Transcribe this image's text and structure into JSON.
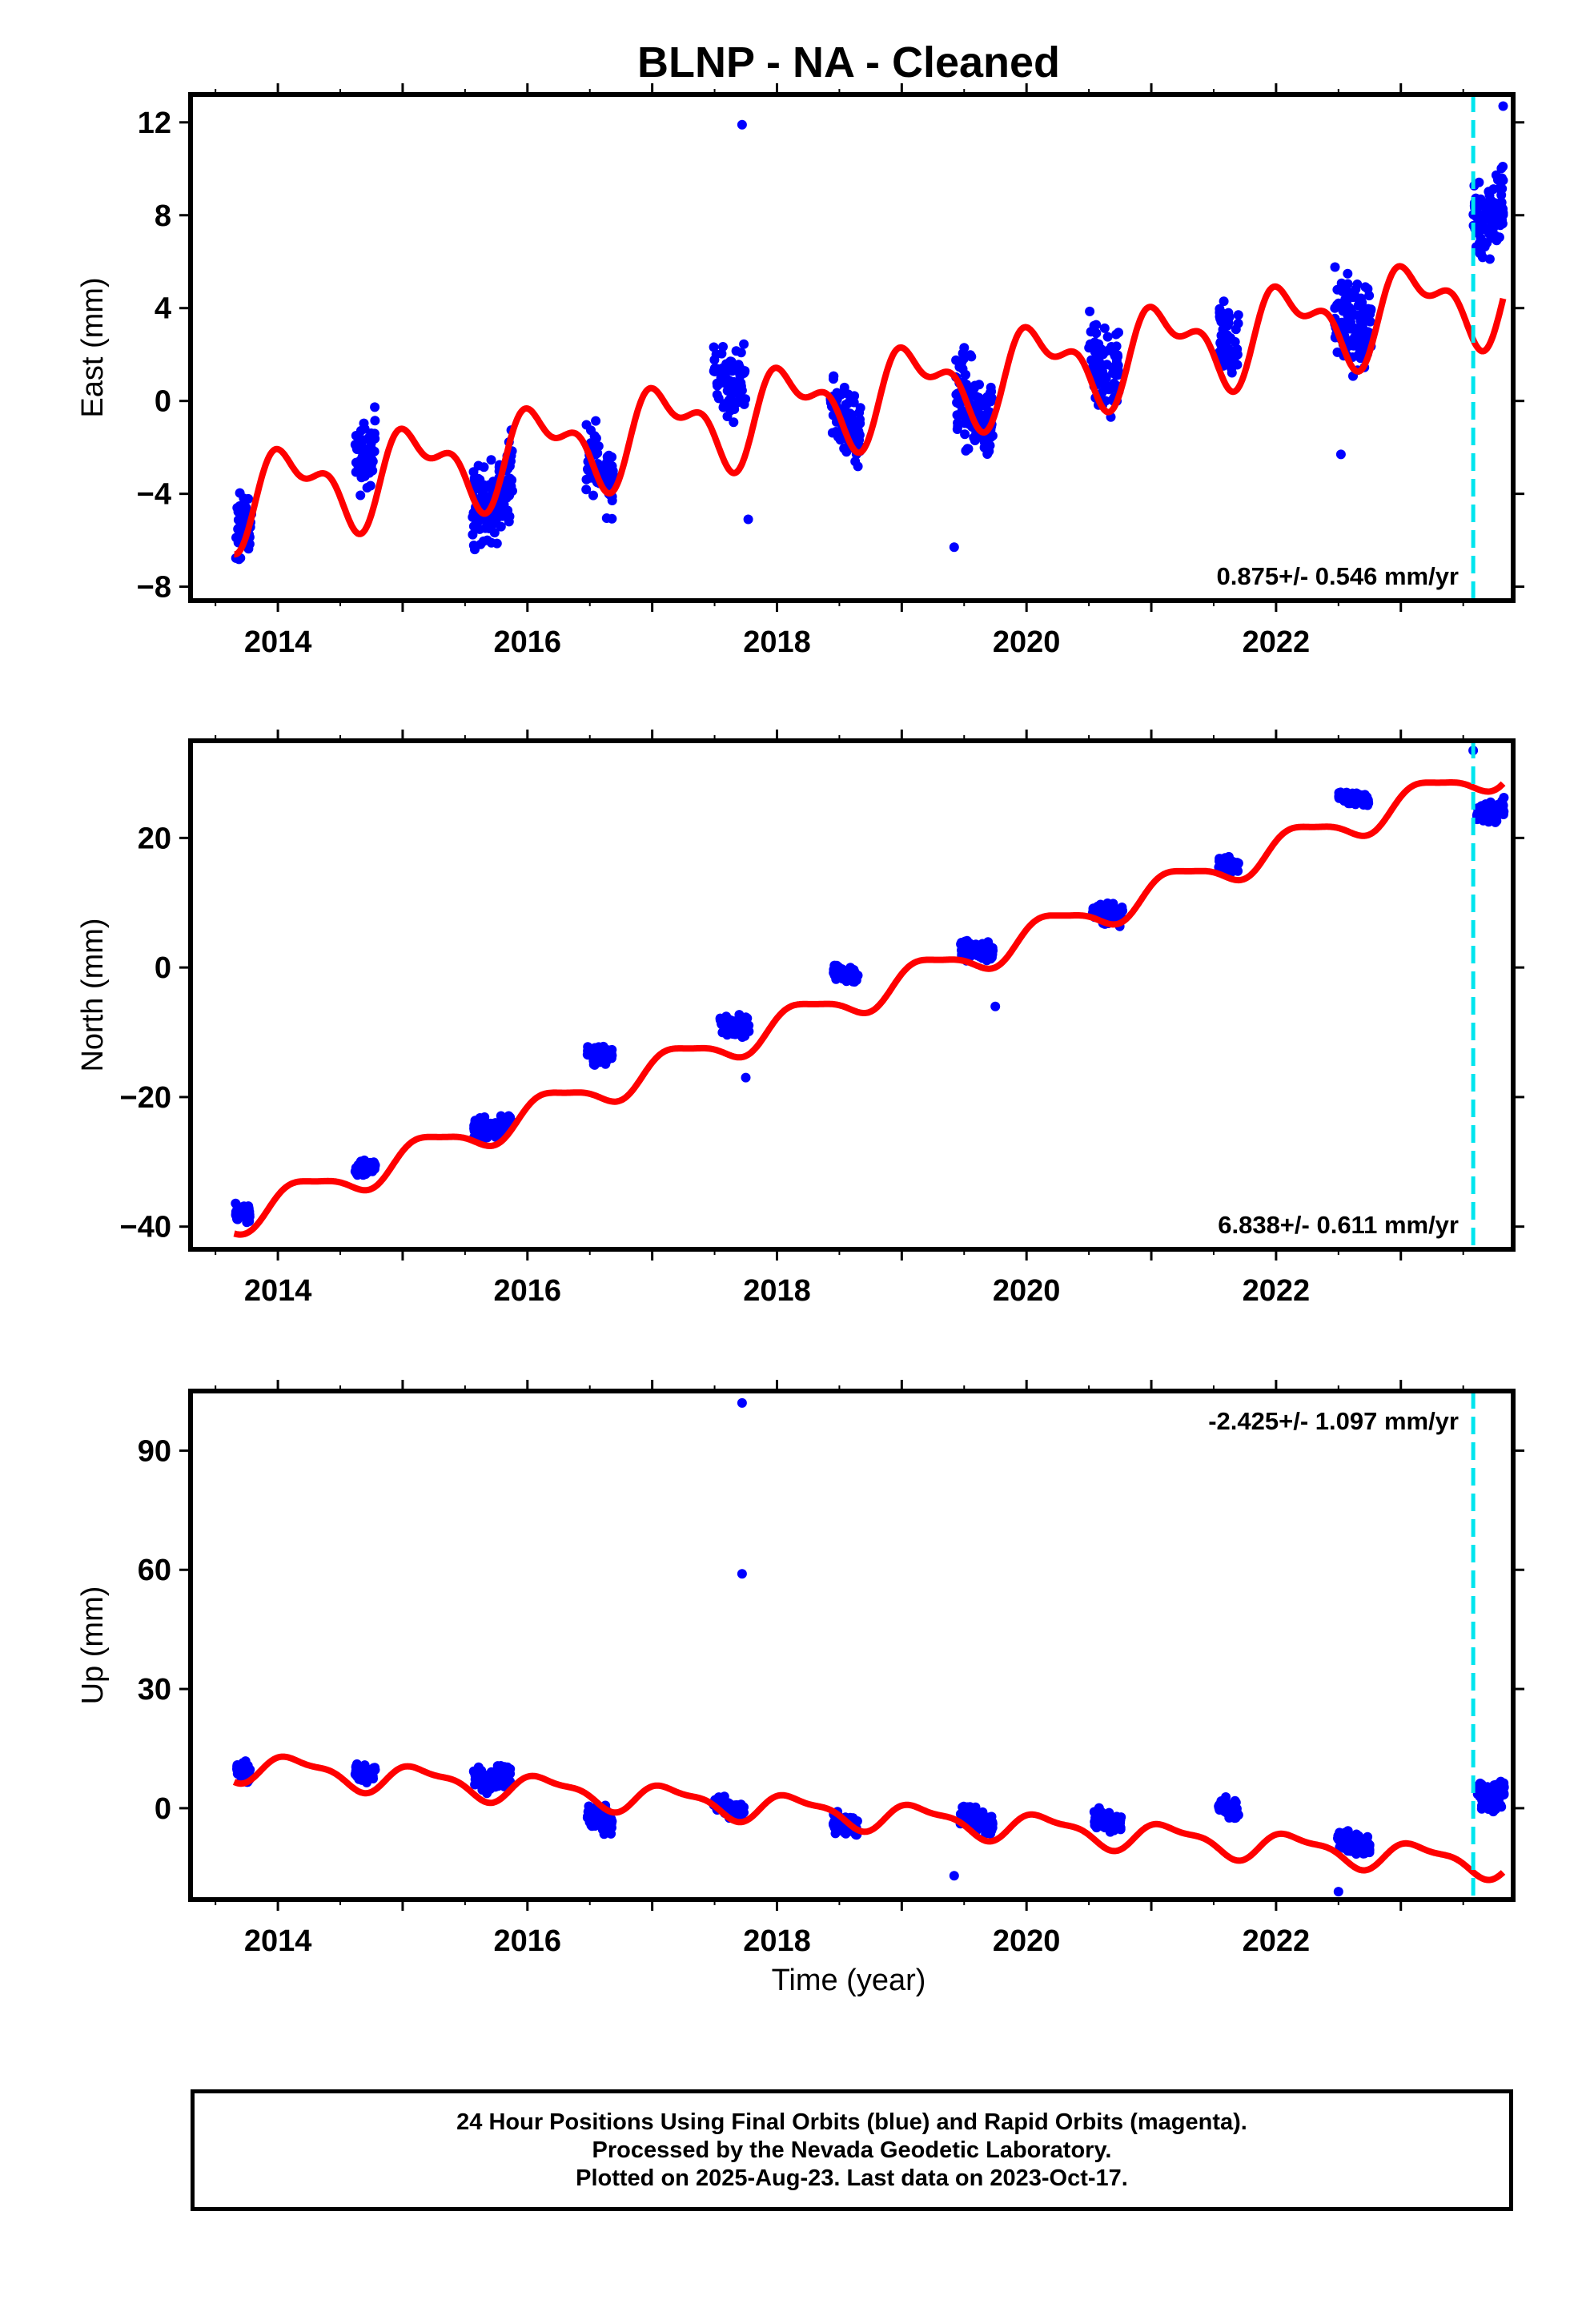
{
  "chart_data": {
    "type": "scatter",
    "title": "BLNP  - NA - Cleaned",
    "xlabel": "Time (year)",
    "x_tick_labels": [
      "2014",
      "2016",
      "2018",
      "2020",
      "2022"
    ],
    "xlim": [
      2013.3,
      2023.9
    ],
    "marker_line_year": 2023.58,
    "colors": {
      "points": "#0000ff",
      "model": "#ff0000",
      "marker_line": "#00e5ee"
    },
    "panels": [
      {
        "name": "east",
        "ylabel": "East (mm)",
        "ylim": [
          -8.6,
          13.2
        ],
        "y_ticks": [
          -8,
          -4,
          0,
          4,
          8,
          12
        ],
        "y_tick_labels": [
          "−8",
          "−4",
          "0",
          "4",
          "8",
          "12"
        ],
        "rate_label": "0.875+/- 0.546 mm/yr",
        "rate_position": "bottom-right",
        "model": {
          "offset": -4.2,
          "rate": 0.875,
          "ref": 2013.7,
          "amp1": 1.6,
          "phase1": 0.9,
          "amp2": 0.9,
          "phase2": 2.4
        },
        "outliers": [
          [
            2017.72,
            11.9
          ],
          [
            2017.77,
            -5.1
          ],
          [
            2019.42,
            -6.3
          ],
          [
            2022.52,
            -2.3
          ],
          [
            2023.82,
            12.7
          ]
        ],
        "clusters": [
          {
            "t": 2013.72,
            "w": 0.14,
            "n": 45,
            "center": -5.5,
            "spread": 3.2
          },
          {
            "t": 2014.7,
            "w": 0.16,
            "n": 60,
            "center": -2.4,
            "spread": 3.0
          },
          {
            "t": 2015.72,
            "w": 0.32,
            "n": 140,
            "center": -4.5,
            "spread": 3.8
          },
          {
            "t": 2016.58,
            "w": 0.22,
            "n": 80,
            "center": -3.0,
            "spread": 3.2
          },
          {
            "t": 2017.62,
            "w": 0.26,
            "n": 80,
            "center": 0.8,
            "spread": 3.4
          },
          {
            "t": 2018.55,
            "w": 0.24,
            "n": 100,
            "center": -1.0,
            "spread": 3.0
          },
          {
            "t": 2019.58,
            "w": 0.3,
            "n": 130,
            "center": -0.6,
            "spread": 4.2
          },
          {
            "t": 2020.62,
            "w": 0.24,
            "n": 90,
            "center": 1.2,
            "spread": 3.5
          },
          {
            "t": 2021.62,
            "w": 0.16,
            "n": 55,
            "center": 2.6,
            "spread": 3.0
          },
          {
            "t": 2022.62,
            "w": 0.3,
            "n": 120,
            "center": 3.2,
            "spread": 4.0
          },
          {
            "t": 2023.7,
            "w": 0.24,
            "n": 120,
            "center": 7.8,
            "spread": 3.8
          }
        ]
      },
      {
        "name": "north",
        "ylabel": "North (mm)",
        "ylim": [
          -43.5,
          35
        ],
        "y_ticks": [
          -40,
          -20,
          0,
          20
        ],
        "y_tick_labels": [
          "−40",
          "−20",
          "0",
          "20"
        ],
        "rate_label": "6.838+/- 0.611 mm/yr",
        "rate_position": "bottom-right",
        "model": {
          "offset": -38.5,
          "rate": 6.838,
          "ref": 2013.7,
          "amp1": 2.4,
          "phase1": 0.3,
          "amp2": 0.6,
          "phase2": 1.2
        },
        "outliers": [
          [
            2017.75,
            -17.0
          ],
          [
            2019.75,
            -6.0
          ],
          [
            2023.58,
            33.5
          ]
        ],
        "clusters": [
          {
            "t": 2013.72,
            "w": 0.12,
            "n": 40,
            "center": -38.0,
            "spread": 3.0
          },
          {
            "t": 2014.7,
            "w": 0.16,
            "n": 60,
            "center": -31.0,
            "spread": 2.6
          },
          {
            "t": 2015.72,
            "w": 0.3,
            "n": 120,
            "center": -25.0,
            "spread": 2.8
          },
          {
            "t": 2016.58,
            "w": 0.2,
            "n": 70,
            "center": -13.5,
            "spread": 3.0
          },
          {
            "t": 2017.66,
            "w": 0.24,
            "n": 70,
            "center": -9.0,
            "spread": 3.2
          },
          {
            "t": 2018.55,
            "w": 0.2,
            "n": 80,
            "center": -1.0,
            "spread": 2.5
          },
          {
            "t": 2019.6,
            "w": 0.26,
            "n": 110,
            "center": 2.5,
            "spread": 3.0
          },
          {
            "t": 2020.65,
            "w": 0.24,
            "n": 90,
            "center": 8.0,
            "spread": 3.0
          },
          {
            "t": 2021.62,
            "w": 0.16,
            "n": 50,
            "center": 16.0,
            "spread": 2.4
          },
          {
            "t": 2022.62,
            "w": 0.24,
            "n": 100,
            "center": 26.0,
            "spread": 2.2
          },
          {
            "t": 2023.72,
            "w": 0.22,
            "n": 110,
            "center": 24.0,
            "spread": 3.0
          }
        ]
      },
      {
        "name": "up",
        "ylabel": "Up (mm)",
        "ylim": [
          -23,
          105
        ],
        "y_ticks": [
          0,
          30,
          60,
          90
        ],
        "y_tick_labels": [
          "0",
          "30",
          "60",
          "90"
        ],
        "rate_label": "-2.425+/- 1.097 mm/yr",
        "rate_position": "top-right",
        "model": {
          "offset": 10.5,
          "rate": -2.425,
          "ref": 2013.7,
          "amp1": 3.3,
          "phase1": 0.6,
          "amp2": 1.2,
          "phase2": 1.9
        },
        "outliers": [
          [
            2017.72,
            102.0
          ],
          [
            2017.72,
            59.0
          ],
          [
            2022.5,
            -21.0
          ],
          [
            2019.42,
            -17.0
          ]
        ],
        "clusters": [
          {
            "t": 2013.72,
            "w": 0.12,
            "n": 40,
            "center": 9.0,
            "spread": 6.0
          },
          {
            "t": 2014.7,
            "w": 0.16,
            "n": 60,
            "center": 9.0,
            "spread": 5.0
          },
          {
            "t": 2015.72,
            "w": 0.3,
            "n": 120,
            "center": 7.0,
            "spread": 5.5
          },
          {
            "t": 2016.58,
            "w": 0.2,
            "n": 80,
            "center": -3.0,
            "spread": 6.5
          },
          {
            "t": 2017.62,
            "w": 0.26,
            "n": 80,
            "center": 0.0,
            "spread": 5.0
          },
          {
            "t": 2018.55,
            "w": 0.2,
            "n": 90,
            "center": -4.5,
            "spread": 5.5
          },
          {
            "t": 2019.6,
            "w": 0.26,
            "n": 110,
            "center": -3.0,
            "spread": 5.5
          },
          {
            "t": 2020.65,
            "w": 0.22,
            "n": 80,
            "center": -3.5,
            "spread": 5.0
          },
          {
            "t": 2021.62,
            "w": 0.16,
            "n": 55,
            "center": -0.5,
            "spread": 4.5
          },
          {
            "t": 2022.62,
            "w": 0.26,
            "n": 110,
            "center": -9.0,
            "spread": 5.5
          },
          {
            "t": 2023.72,
            "w": 0.22,
            "n": 110,
            "center": 3.0,
            "spread": 6.5
          }
        ]
      }
    ]
  },
  "caption": {
    "line1": "24 Hour Positions Using Final Orbits (blue) and Rapid Orbits (magenta).",
    "line2": "Processed by the Nevada Geodetic Laboratory.",
    "line3": "Plotted on 2025-Aug-23. Last data on 2023-Oct-17."
  }
}
